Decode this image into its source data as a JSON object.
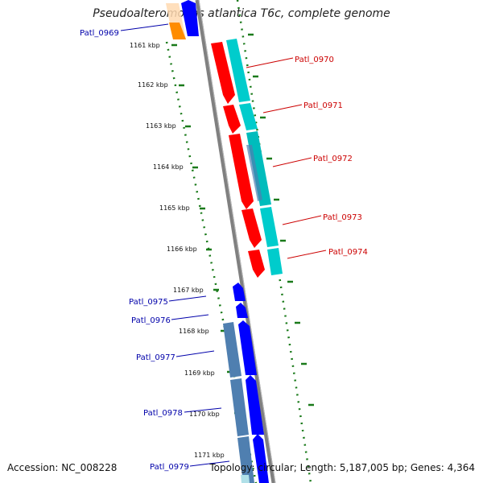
{
  "title": "Pseudoalteromonas atlantica T6c, complete genome",
  "footer": {
    "accession": "Accession: NC_008228",
    "summary": "Topology: circular; Length: 5,187,005 bp; Genes: 4,364"
  },
  "colors": {
    "forward_strand": "#ff0000",
    "forward_cds": "#00cccc",
    "reverse_strand": "#0000ff",
    "reverse_cds": "#4f7fb0",
    "orange_gene": "#ff8c00",
    "axis": "#808080",
    "ticks": "#1a7a1a",
    "forward_label": "#cc0000",
    "reverse_label": "#0000aa"
  },
  "ticks": [
    {
      "label": "1161 kbp"
    },
    {
      "label": "1162 kbp"
    },
    {
      "label": "1163 kbp"
    },
    {
      "label": "1164 kbp"
    },
    {
      "label": "1165 kbp"
    },
    {
      "label": "1166 kbp"
    },
    {
      "label": "1167 kbp"
    },
    {
      "label": "1168 kbp"
    },
    {
      "label": "1169 kbp"
    },
    {
      "label": "1170 kbp"
    },
    {
      "label": "1171 kbp"
    }
  ],
  "gene_labels": {
    "forward": [
      "Patl_0970",
      "Patl_0971",
      "Patl_0972",
      "Patl_0973",
      "Patl_0974"
    ],
    "reverse": [
      "Patl_0969",
      "Patl_0975",
      "Patl_0976",
      "Patl_0977",
      "Patl_0978",
      "Patl_0979"
    ]
  }
}
